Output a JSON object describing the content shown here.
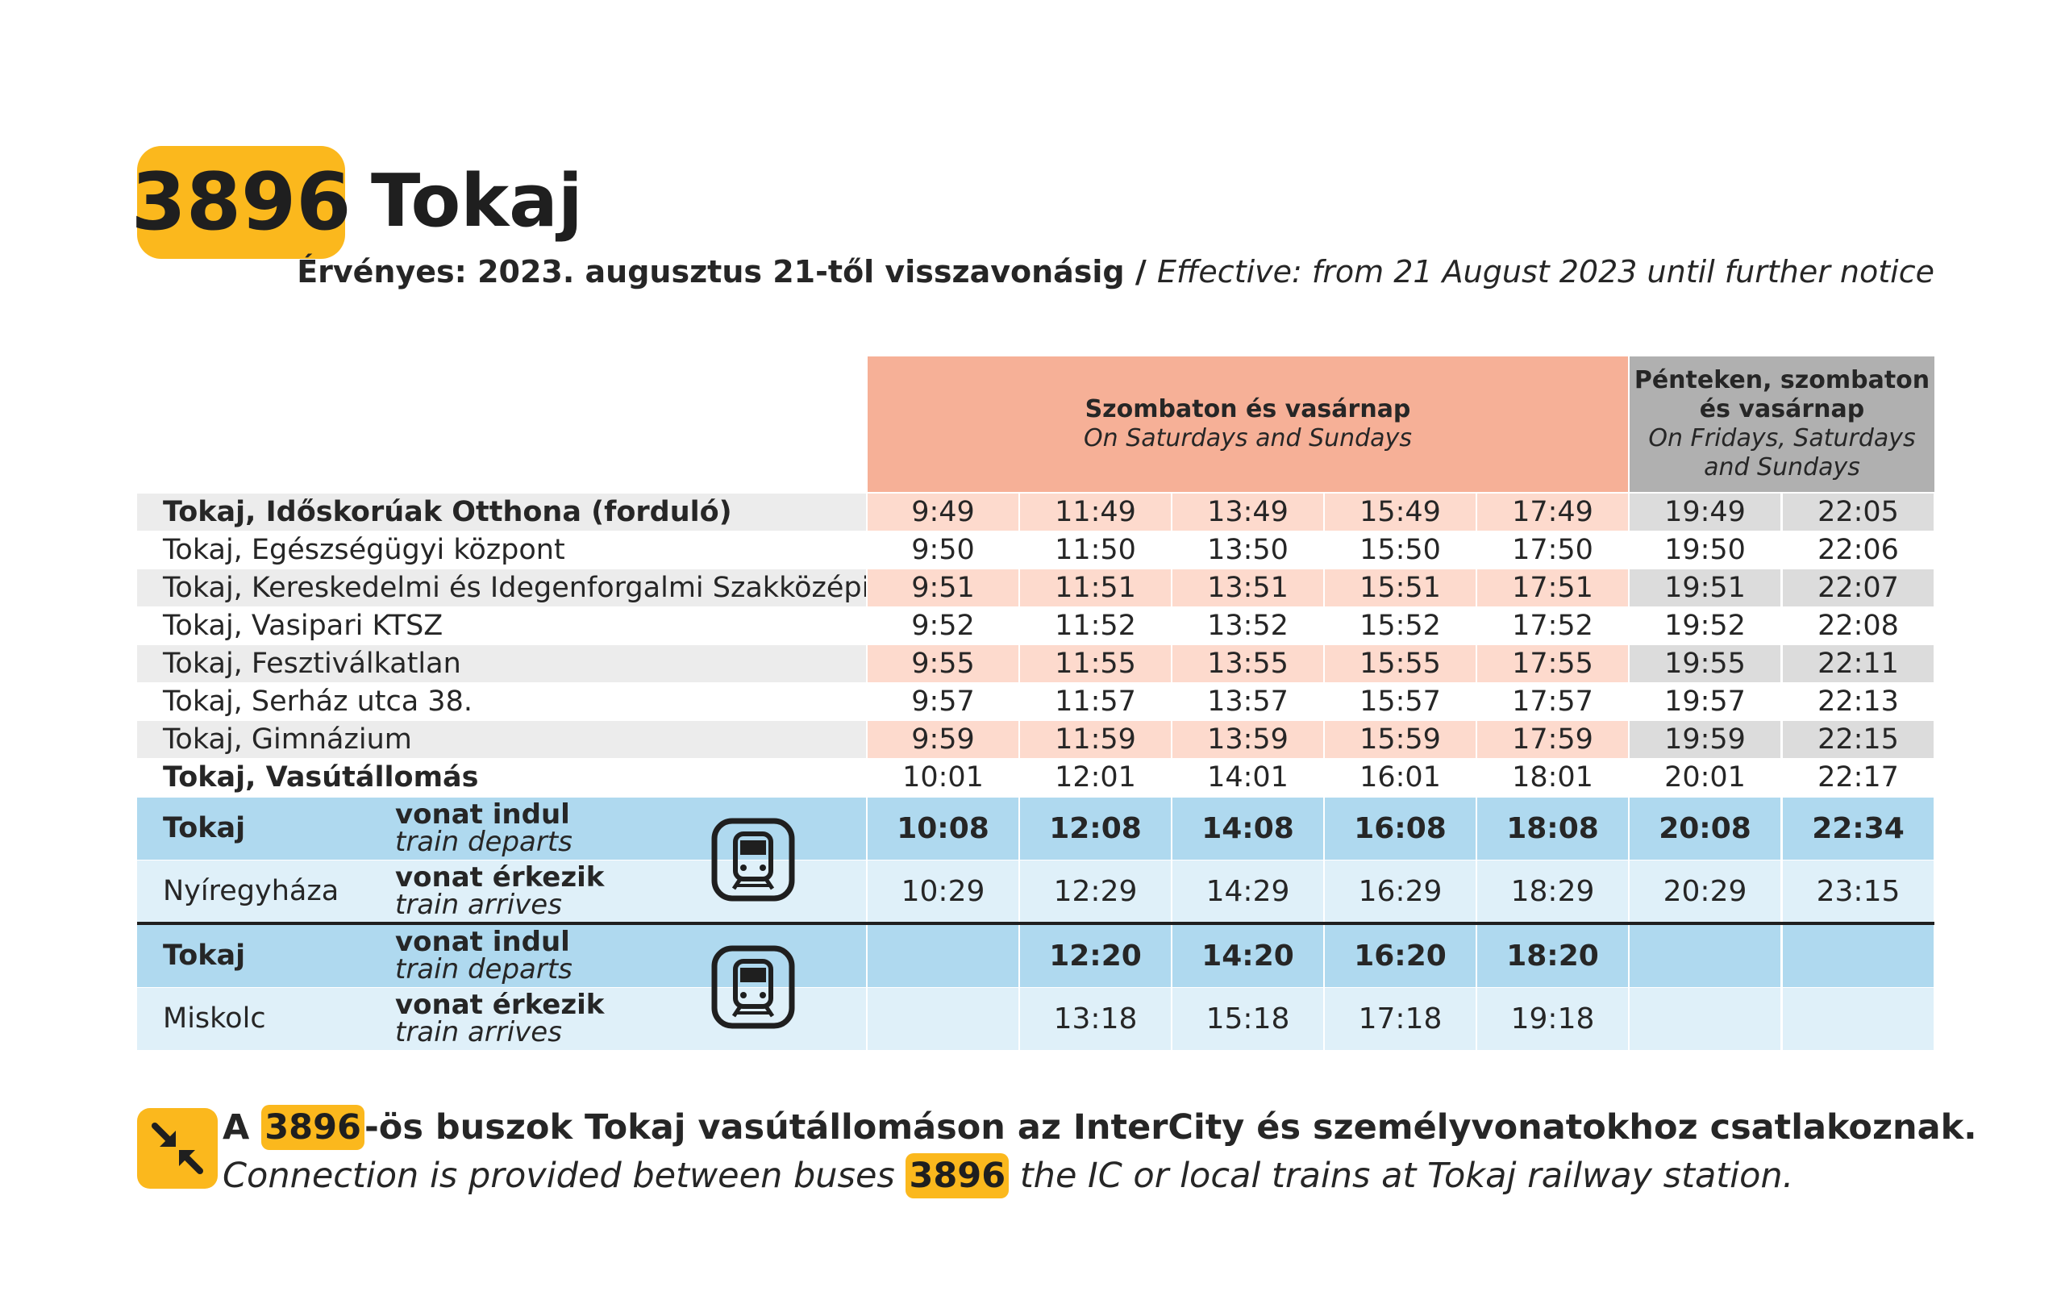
{
  "route": {
    "number": "3896",
    "destination": "Tokaj"
  },
  "validity": {
    "hu": "Érvényes: 2023. augusztus 21-től visszavonásig",
    "sep": " / ",
    "en": "Effective: from 21 August 2023 until further notice"
  },
  "headers": {
    "group_a": {
      "hu": "Szombaton és vasárnap",
      "en": "On Saturdays and Sundays"
    },
    "group_b": {
      "hu_line1": "Pénteken, szombaton",
      "hu_line2": "és vasárnap",
      "en_line1": "On Fridays, Saturdays",
      "en_line2": "and Sundays"
    }
  },
  "stops": [
    {
      "name": "Tokaj, Időskorúak Otthona (forduló)",
      "bold": true,
      "times": [
        "9:49",
        "11:49",
        "13:49",
        "15:49",
        "17:49",
        "19:49",
        "22:05"
      ]
    },
    {
      "name": "Tokaj, Egészségügyi központ",
      "bold": false,
      "times": [
        "9:50",
        "11:50",
        "13:50",
        "15:50",
        "17:50",
        "19:50",
        "22:06"
      ]
    },
    {
      "name": "Tokaj, Kereskedelmi és Idegenforgalmi Szakközépiskola",
      "bold": false,
      "times": [
        "9:51",
        "11:51",
        "13:51",
        "15:51",
        "17:51",
        "19:51",
        "22:07"
      ]
    },
    {
      "name": "Tokaj, Vasipari KTSZ",
      "bold": false,
      "times": [
        "9:52",
        "11:52",
        "13:52",
        "15:52",
        "17:52",
        "19:52",
        "22:08"
      ]
    },
    {
      "name": "Tokaj, Fesztiválkatlan",
      "bold": false,
      "times": [
        "9:55",
        "11:55",
        "13:55",
        "15:55",
        "17:55",
        "19:55",
        "22:11"
      ]
    },
    {
      "name": "Tokaj, Serház utca 38.",
      "bold": false,
      "times": [
        "9:57",
        "11:57",
        "13:57",
        "15:57",
        "17:57",
        "19:57",
        "22:13"
      ]
    },
    {
      "name": "Tokaj, Gimnázium",
      "bold": false,
      "times": [
        "9:59",
        "11:59",
        "13:59",
        "15:59",
        "17:59",
        "19:59",
        "22:15"
      ]
    },
    {
      "name": "Tokaj, Vasútállomás",
      "bold": true,
      "times": [
        "10:01",
        "12:01",
        "14:01",
        "16:01",
        "18:01",
        "20:01",
        "22:17"
      ]
    }
  ],
  "trains": [
    {
      "depart": {
        "city": "Tokaj",
        "label_hu": "vonat indul",
        "label_en": "train departs",
        "times": [
          "10:08",
          "12:08",
          "14:08",
          "16:08",
          "18:08",
          "20:08",
          "22:34"
        ]
      },
      "arrive": {
        "city": "Nyíregyháza",
        "label_hu": "vonat érkezik",
        "label_en": "train arrives",
        "times": [
          "10:29",
          "12:29",
          "14:29",
          "16:29",
          "18:29",
          "20:29",
          "23:15"
        ]
      }
    },
    {
      "depart": {
        "city": "Tokaj",
        "label_hu": "vonat indul",
        "label_en": "train departs",
        "times": [
          "",
          "12:20",
          "14:20",
          "16:20",
          "18:20",
          "",
          ""
        ]
      },
      "arrive": {
        "city": "Miskolc",
        "label_hu": "vonat érkezik",
        "label_en": "train arrives",
        "times": [
          "",
          "13:18",
          "15:18",
          "17:18",
          "19:18",
          "",
          ""
        ]
      }
    }
  ],
  "note": {
    "hu_prefix": "A ",
    "hu_badge": "3896",
    "hu_suffix": "-ös buszok Tokaj vasútállomáson az InterCity és személyvonatokhoz csatlakoznak.",
    "en_prefix": "Connection is provided between buses ",
    "en_badge": "3896",
    "en_suffix": " the IC or local trains at Tokaj railway station."
  },
  "colors": {
    "yellow": "#fbb81d",
    "salmon_header": "#f6b097",
    "salmon_light": "#fddacd",
    "grey_header": "#b0b0b0",
    "grey_light": "#dcdcdc",
    "row_grey": "#ececec",
    "blue": "#afd9ef",
    "blue_light": "#dff0f9"
  }
}
